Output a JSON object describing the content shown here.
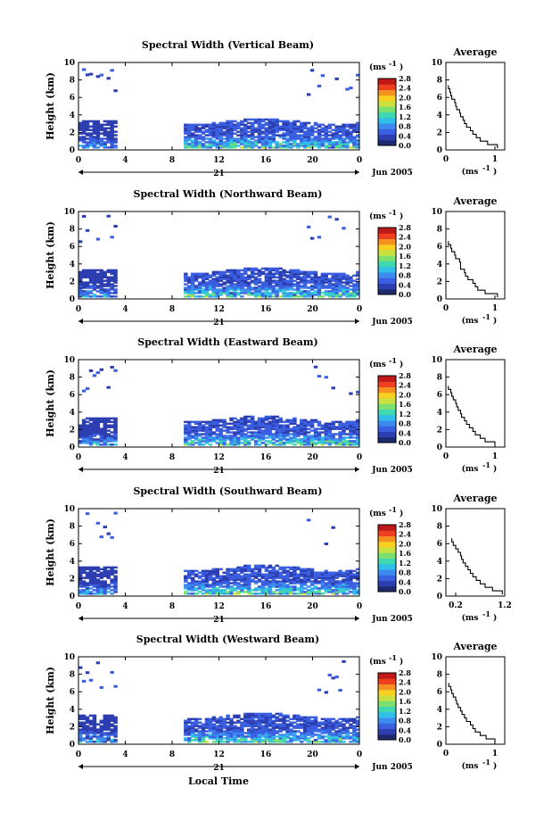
{
  "figure": {
    "xlabel": "Local Time",
    "date_label": "21",
    "month_label": "Jun 2005",
    "ylabel": "Height (km)",
    "unit_label": "(ms",
    "unit_exp": "-1",
    "avg_title": "Average",
    "avg_unit_label": "(ms",
    "avg_unit_exp": "-1"
  },
  "chart_data": [
    {
      "type": "heatmap",
      "title": "Spectral Width (Vertical Beam)",
      "x_ticks": [
        "0",
        "4",
        "8",
        "12",
        "16",
        "20",
        "0"
      ],
      "y_ticks": [
        "0",
        "2",
        "4",
        "6",
        "8",
        "10"
      ],
      "colorbar_ticks": [
        "0.0",
        "0.4",
        "0.8",
        "1.2",
        "1.6",
        "2.0",
        "2.4",
        "2.8"
      ],
      "avg_x_ticks": [
        "0",
        "1"
      ],
      "avg_y_ticks": [
        "0",
        "2",
        "4",
        "6",
        "8",
        "10"
      ],
      "x_range": [
        0,
        24
      ],
      "y_range": [
        0,
        10
      ],
      "color_range": [
        0,
        2.8
      ],
      "avg_profile": {
        "height_km": [
          0.2,
          0.6,
          1,
          1.4,
          1.8,
          2.2,
          2.6,
          3,
          3.4,
          3.8,
          4.2,
          4.6,
          5,
          5.4,
          5.8,
          6.2,
          6.6,
          7
        ],
        "value": [
          1.05,
          0.85,
          0.7,
          0.62,
          0.55,
          0.5,
          0.42,
          0.38,
          0.35,
          0.3,
          0.28,
          0.22,
          0.2,
          0.18,
          0.12,
          0.1,
          0.08,
          0.05
        ]
      }
    },
    {
      "type": "heatmap",
      "title": "Spectral Width (Northward Beam)",
      "x_ticks": [
        "0",
        "4",
        "8",
        "12",
        "16",
        "20",
        "0"
      ],
      "y_ticks": [
        "0",
        "2",
        "4",
        "6",
        "8",
        "10"
      ],
      "colorbar_ticks": [
        "0.0",
        "0.4",
        "0.8",
        "1.2",
        "1.6",
        "2.0",
        "2.4",
        "2.8"
      ],
      "avg_x_ticks": [
        "0",
        "1"
      ],
      "avg_y_ticks": [
        "0",
        "2",
        "4",
        "6",
        "8",
        "10"
      ],
      "x_range": [
        0,
        24
      ],
      "y_range": [
        0,
        10
      ],
      "color_range": [
        0,
        2.8
      ],
      "avg_profile": {
        "height_km": [
          0.2,
          0.6,
          1,
          1.4,
          1.8,
          2.2,
          2.6,
          3,
          3.4,
          3.8,
          4.2,
          4.6,
          5,
          5.4,
          5.8,
          6.2
        ],
        "value": [
          1.05,
          0.8,
          0.65,
          0.6,
          0.55,
          0.45,
          0.4,
          0.38,
          0.3,
          0.3,
          0.28,
          0.2,
          0.18,
          0.12,
          0.1,
          0.05
        ]
      }
    },
    {
      "type": "heatmap",
      "title": "Spectral Width (Eastward Beam)",
      "x_ticks": [
        "0",
        "4",
        "8",
        "12",
        "16",
        "20",
        "0"
      ],
      "y_ticks": [
        "0",
        "2",
        "4",
        "6",
        "8",
        "10"
      ],
      "colorbar_ticks": [
        "0.0",
        "0.4",
        "0.8",
        "1.2",
        "1.6",
        "2.0",
        "2.4",
        "2.8"
      ],
      "avg_x_ticks": [
        "0",
        "1"
      ],
      "avg_y_ticks": [
        "0",
        "2",
        "4",
        "6",
        "8",
        "10"
      ],
      "x_range": [
        0,
        24
      ],
      "y_range": [
        0,
        10
      ],
      "color_range": [
        0,
        2.8
      ],
      "avg_profile": {
        "height_km": [
          0.2,
          0.6,
          1,
          1.4,
          1.8,
          2.2,
          2.6,
          3,
          3.4,
          3.8,
          4.2,
          4.6,
          5,
          5.4,
          5.8,
          6.2,
          6.6
        ],
        "value": [
          1.0,
          0.8,
          0.7,
          0.6,
          0.55,
          0.48,
          0.42,
          0.38,
          0.32,
          0.3,
          0.25,
          0.22,
          0.2,
          0.15,
          0.12,
          0.1,
          0.05
        ]
      }
    },
    {
      "type": "heatmap",
      "title": "Spectral Width (Southward Beam)",
      "x_ticks": [
        "0",
        "4",
        "8",
        "12",
        "16",
        "20",
        "0"
      ],
      "y_ticks": [
        "0",
        "2",
        "4",
        "6",
        "8",
        "10"
      ],
      "colorbar_ticks": [
        "0.0",
        "0.4",
        "0.8",
        "1.2",
        "1.6",
        "2.0",
        "2.4",
        "2.8"
      ],
      "avg_x_ticks": [
        "0.2",
        "1.2"
      ],
      "avg_y_ticks": [
        "0",
        "2",
        "4",
        "6",
        "8",
        "10"
      ],
      "x_range": [
        0,
        24
      ],
      "y_range": [
        0,
        10
      ],
      "color_range": [
        0,
        2.8
      ],
      "avg_profile": {
        "height_km": [
          0.2,
          0.6,
          1,
          1.4,
          1.8,
          2.2,
          2.6,
          3,
          3.4,
          3.8,
          4.2,
          4.6,
          5,
          5.4,
          5.8,
          6.2
        ],
        "value": [
          1.15,
          0.95,
          0.8,
          0.7,
          0.62,
          0.55,
          0.5,
          0.45,
          0.4,
          0.35,
          0.32,
          0.3,
          0.25,
          0.2,
          0.15,
          0.12
        ]
      }
    },
    {
      "type": "heatmap",
      "title": "Spectral Width (Westward Beam)",
      "x_ticks": [
        "0",
        "4",
        "8",
        "12",
        "16",
        "20",
        "0"
      ],
      "y_ticks": [
        "0",
        "2",
        "4",
        "6",
        "8",
        "10"
      ],
      "colorbar_ticks": [
        "0.0",
        "0.4",
        "0.8",
        "1.2",
        "1.6",
        "2.0",
        "2.4",
        "2.8"
      ],
      "avg_x_ticks": [
        "0",
        "1"
      ],
      "avg_y_ticks": [
        "0",
        "2",
        "4",
        "6",
        "8",
        "10"
      ],
      "x_range": [
        0,
        24
      ],
      "y_range": [
        0,
        10
      ],
      "color_range": [
        0,
        2.8
      ],
      "avg_profile": {
        "height_km": [
          0.2,
          0.6,
          1,
          1.4,
          1.8,
          2.2,
          2.6,
          3,
          3.4,
          3.8,
          4.2,
          4.6,
          5,
          5.4,
          5.8,
          6.2,
          6.6
        ],
        "value": [
          1.0,
          0.82,
          0.7,
          0.6,
          0.55,
          0.5,
          0.42,
          0.38,
          0.33,
          0.3,
          0.25,
          0.22,
          0.2,
          0.15,
          0.12,
          0.1,
          0.06
        ]
      }
    }
  ],
  "colors": {
    "colormap": [
      "#1e2a6e",
      "#2d3fb0",
      "#3a5fe0",
      "#3c8cf0",
      "#2fbfe8",
      "#3fd8b0",
      "#7ae070",
      "#c8e040",
      "#f7d020",
      "#f69020",
      "#ee4020",
      "#c01818"
    ]
  }
}
